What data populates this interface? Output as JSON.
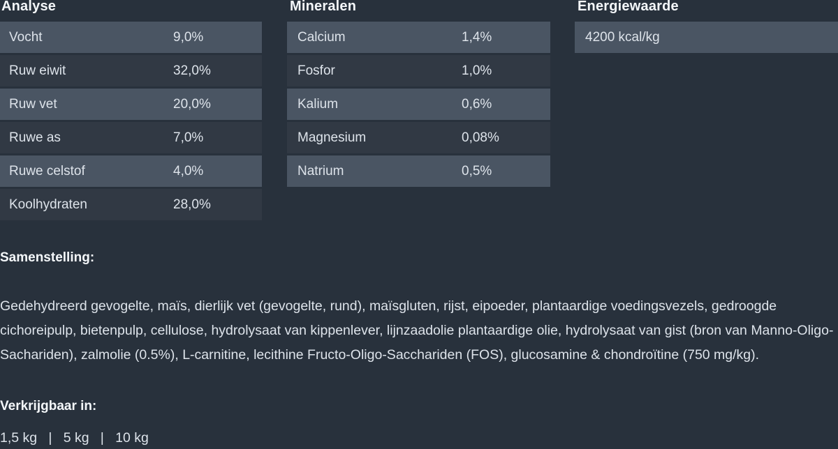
{
  "theme": {
    "background": "#28313c",
    "row_light": "#4a5563",
    "row_dark": "#303945",
    "text": "#dde3ea",
    "heading_text": "#f4f7fa"
  },
  "tables": [
    {
      "title": "Analyse",
      "rows": [
        {
          "label": "Vocht",
          "value": "9,0%"
        },
        {
          "label": "Ruw eiwit",
          "value": "32,0%"
        },
        {
          "label": "Ruw vet",
          "value": "20,0%"
        },
        {
          "label": "Ruwe as",
          "value": "7,0%"
        },
        {
          "label": "Ruwe celstof",
          "value": "4,0%"
        },
        {
          "label": "Koolhydraten",
          "value": "28,0%"
        }
      ]
    },
    {
      "title": "Mineralen",
      "rows": [
        {
          "label": "Calcium",
          "value": "1,4%"
        },
        {
          "label": "Fosfor",
          "value": "1,0%"
        },
        {
          "label": "Kalium",
          "value": "0,6%"
        },
        {
          "label": "Magnesium",
          "value": "0,08%"
        },
        {
          "label": "Natrium",
          "value": "0,5%"
        }
      ]
    },
    {
      "title": "Energiewaarde",
      "rows": [
        {
          "label": "4200 kcal/kg",
          "value": ""
        }
      ]
    }
  ],
  "composition": {
    "heading": "Samenstelling:",
    "text": "Gedehydreerd gevogelte, maïs, dierlijk vet (gevogelte, rund), maïsgluten, rijst, eipoeder, plantaardige voedingsvezels, gedroogde cichoreipulp, bietenpulp, cellulose, hydrolysaat van kippenlever, lijnzaadolie plantaardige olie, hydrolysaat van gist (bron van Manno-Oligo- Sachariden), zalmolie (0.5%), L-carnitine, lecithine Fructo-Oligo-Sacchariden (FOS), glucosamine & chondroïtine (750 mg/kg)."
  },
  "availability": {
    "heading": "Verkrijgbaar in:",
    "sizes": "1,5 kg   |   5 kg   |   10 kg"
  }
}
